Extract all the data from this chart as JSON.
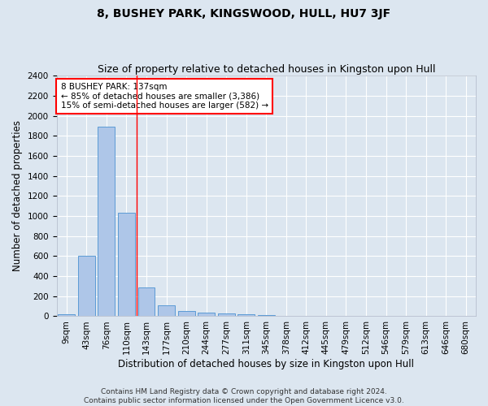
{
  "title": "8, BUSHEY PARK, KINGSWOOD, HULL, HU7 3JF",
  "subtitle": "Size of property relative to detached houses in Kingston upon Hull",
  "xlabel": "Distribution of detached houses by size in Kingston upon Hull",
  "ylabel": "Number of detached properties",
  "categories": [
    "9sqm",
    "43sqm",
    "76sqm",
    "110sqm",
    "143sqm",
    "177sqm",
    "210sqm",
    "244sqm",
    "277sqm",
    "311sqm",
    "345sqm",
    "378sqm",
    "412sqm",
    "445sqm",
    "479sqm",
    "512sqm",
    "546sqm",
    "579sqm",
    "613sqm",
    "646sqm",
    "680sqm"
  ],
  "values": [
    20,
    600,
    1890,
    1030,
    290,
    110,
    50,
    40,
    30,
    20,
    10,
    5,
    3,
    2,
    2,
    1,
    1,
    1,
    1,
    1,
    1
  ],
  "bar_color": "#aec6e8",
  "bar_edge_color": "#5b9bd5",
  "background_color": "#dce6f0",
  "grid_color": "#ffffff",
  "red_line_index": 4,
  "annotation_title": "8 BUSHEY PARK: 137sqm",
  "annotation_line1": "← 85% of detached houses are smaller (3,386)",
  "annotation_line2": "15% of semi-detached houses are larger (582) →",
  "ylim": [
    0,
    2400
  ],
  "yticks": [
    0,
    200,
    400,
    600,
    800,
    1000,
    1200,
    1400,
    1600,
    1800,
    2000,
    2200,
    2400
  ],
  "footer_line1": "Contains HM Land Registry data © Crown copyright and database right 2024.",
  "footer_line2": "Contains public sector information licensed under the Open Government Licence v3.0.",
  "title_fontsize": 10,
  "subtitle_fontsize": 9,
  "xlabel_fontsize": 8.5,
  "ylabel_fontsize": 8.5,
  "tick_fontsize": 7.5,
  "annotation_fontsize": 7.5,
  "footer_fontsize": 6.5
}
